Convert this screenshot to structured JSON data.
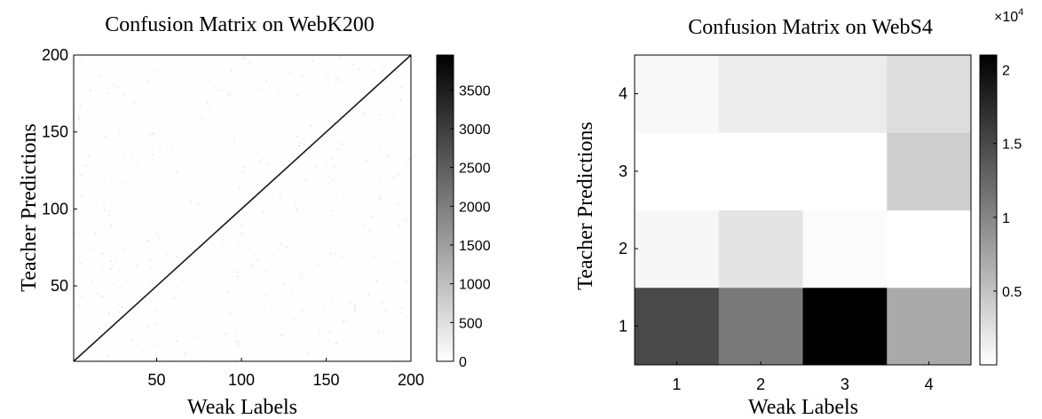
{
  "chart_data": [
    {
      "type": "heatmap",
      "title": "Confusion Matrix on WebK200",
      "xlabel": "Weak Labels",
      "ylabel": "Teacher Predictions",
      "n_classes": 200,
      "xlim": [
        1,
        200
      ],
      "ylim": [
        1,
        200
      ],
      "xticks": [
        50,
        100,
        150,
        200
      ],
      "yticks": [
        50,
        100,
        150,
        200
      ],
      "diagonal_value": 3700,
      "off_diagonal_value": 0,
      "colorbar": {
        "range": [
          0,
          3950
        ],
        "ticks": [
          0,
          500,
          1000,
          1500,
          2000,
          2500,
          3000,
          3500
        ]
      },
      "colormap": "gray-reversed"
    },
    {
      "type": "heatmap",
      "title": "Confusion Matrix on WebS4",
      "xlabel": "Weak Labels",
      "ylabel": "Teacher Predictions",
      "x": [
        1,
        2,
        3,
        4
      ],
      "y": [
        1,
        2,
        3,
        4
      ],
      "values": [
        [
          15000,
          11000,
          21000,
          7000
        ],
        [
          700,
          2200,
          300,
          0
        ],
        [
          0,
          0,
          0,
          4000
        ],
        [
          600,
          1600,
          1600,
          2800
        ]
      ],
      "colorbar": {
        "range": [
          0,
          21000
        ],
        "ticks": [
          5000,
          10000,
          15000,
          20000
        ],
        "tick_labels": [
          "0.5",
          "1",
          "1.5",
          "2"
        ],
        "exponent_label": "×10",
        "exponent": "4"
      },
      "colormap": "gray-reversed"
    }
  ]
}
